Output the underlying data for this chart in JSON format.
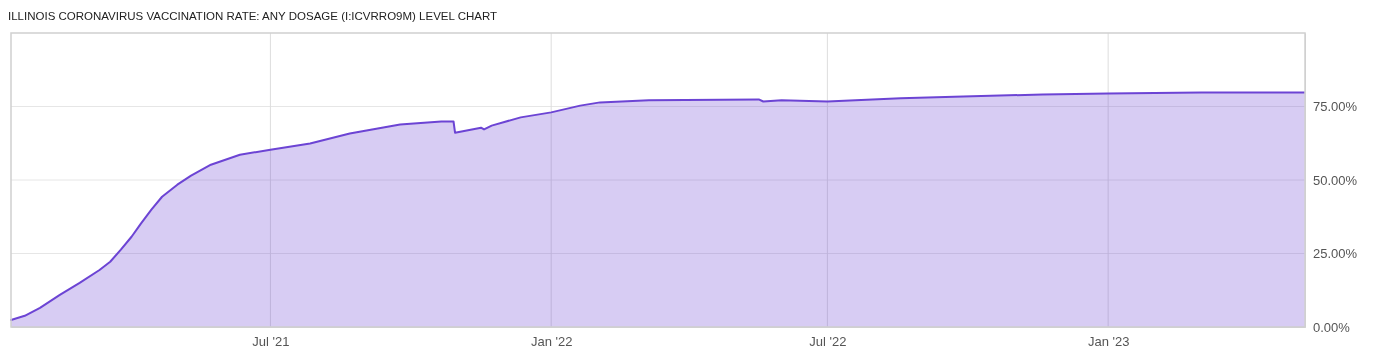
{
  "chart_data": {
    "type": "area",
    "title": "ILLINOIS CORONAVIRUS VACCINATION RATE: ANY DOSAGE (I:ICVRRO9M) LEVEL CHART",
    "x": [
      "2021-01-12",
      "2021-01-21",
      "2021-01-31",
      "2021-02-13",
      "2021-02-26",
      "2021-03-11",
      "2021-03-18",
      "2021-03-25",
      "2021-04-01",
      "2021-04-07",
      "2021-04-14",
      "2021-04-21",
      "2021-05-01",
      "2021-05-10",
      "2021-05-23",
      "2021-06-11",
      "2021-07-01",
      "2021-07-27",
      "2021-08-22",
      "2021-09-24",
      "2021-10-21",
      "2021-10-29",
      "2021-10-30",
      "2021-11-16",
      "2021-11-18",
      "2021-11-23",
      "2021-12-12",
      "2022-01-01",
      "2022-01-20",
      "2022-02-02",
      "2022-03-06",
      "2022-05-17",
      "2022-05-20",
      "2022-06-01",
      "2022-07-01",
      "2022-08-18",
      "2022-09-28",
      "2022-11-19",
      "2023-01-01",
      "2023-03-03",
      "2023-05-10"
    ],
    "series": [
      {
        "color": "#6c44d4",
        "values": [
          2.4,
          3.8,
          6.5,
          10.9,
          15.0,
          19.4,
          22.2,
          26.3,
          30.7,
          35.1,
          39.9,
          44.3,
          48.4,
          51.5,
          55.2,
          58.6,
          60.3,
          62.4,
          65.8,
          68.9,
          69.9,
          69.9,
          66.1,
          67.8,
          67.2,
          68.5,
          71.3,
          73.0,
          75.3,
          76.4,
          77.1,
          77.4,
          76.7,
          77.1,
          76.7,
          77.8,
          78.4,
          79.1,
          79.4,
          79.8,
          79.8
        ]
      }
    ],
    "xlim": [
      "2021-01-12",
      "2023-05-10"
    ],
    "xticks": [
      {
        "value": "2021-07-01",
        "label": "Jul '21"
      },
      {
        "value": "2022-01-01",
        "label": "Jan '22"
      },
      {
        "value": "2022-07-01",
        "label": "Jul '22"
      },
      {
        "value": "2023-01-01",
        "label": "Jan '23"
      }
    ],
    "ylim": [
      0,
      100
    ],
    "yticks": [
      {
        "value": 0,
        "label": "0.00%"
      },
      {
        "value": 25,
        "label": "25.00%"
      },
      {
        "value": 50,
        "label": "50.00%"
      },
      {
        "value": 75,
        "label": "75.00%"
      }
    ],
    "grid": true
  }
}
